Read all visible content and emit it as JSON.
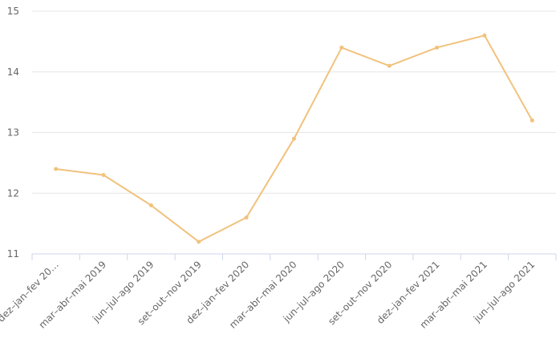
{
  "chart_data": {
    "type": "line",
    "categories": [
      "dez–jan–fev 20…",
      "mar–abr–mai 2019",
      "jun–jul–ago 2019",
      "set–out–nov 2019",
      "dez–jan–fev 2020",
      "mar–abr–mai 2020",
      "jun–jul–ago 2020",
      "set–out–nov 2020",
      "dez–jan–fev 2021",
      "mar–abr–mai 2021",
      "jun–jul–ago 2021"
    ],
    "values": [
      12.4,
      12.3,
      11.8,
      11.2,
      11.6,
      12.9,
      14.4,
      14.1,
      14.4,
      14.6,
      13.2
    ],
    "color": "#f1c27d",
    "ylim": [
      11,
      15
    ],
    "yticks": [
      11,
      12,
      13,
      14,
      15
    ],
    "grid": true
  }
}
